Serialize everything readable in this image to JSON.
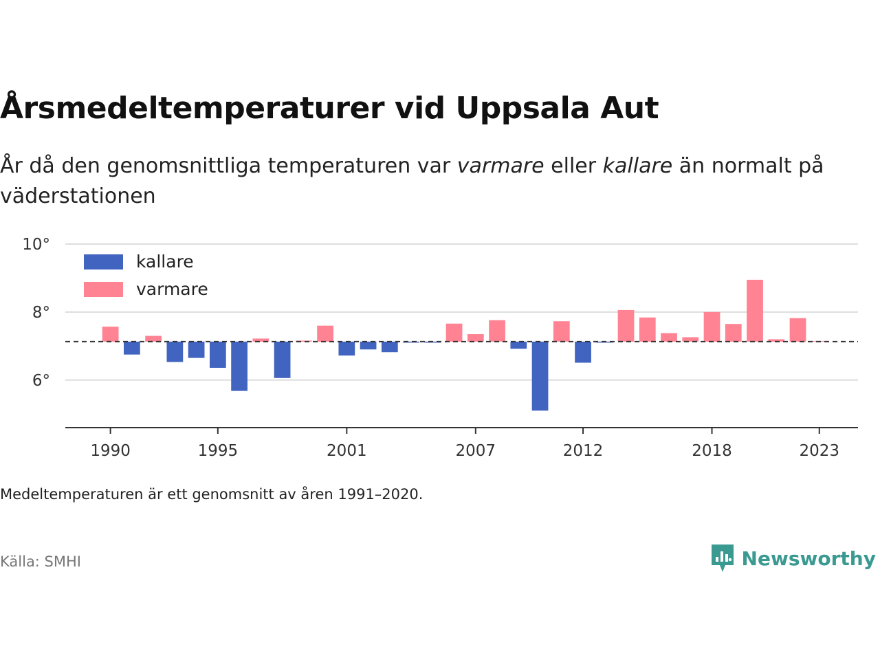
{
  "title": "Årsmedeltemperaturer vid Uppsala Aut",
  "subtitle": {
    "part1": "År då den genomsnittliga temperaturen var ",
    "warm_word": "varmare",
    "part2": " eller ",
    "cold_word": "kallare",
    "part3": " än normalt på väderstationen"
  },
  "note": "Medeltemperaturen är ett genomsnitt av åren 1991–2020.",
  "source": "Källa: SMHI",
  "brand": {
    "name": "Newsworthy",
    "icon": "newsworthy-logo-icon"
  },
  "colors": {
    "cold": "#4164c0",
    "warm": "#ff8392",
    "baseline": "#333333",
    "grid": "#dddddd",
    "brand": "#3a9a92"
  },
  "chart_data": {
    "type": "bar",
    "baseline": 7.13,
    "baseline_style": "dashed",
    "ylim": [
      4.6,
      10
    ],
    "y_ticks": [
      6,
      8,
      10
    ],
    "y_tick_labels": [
      "6°",
      "8°",
      "10°"
    ],
    "x_range": [
      1987.9,
      2024.8
    ],
    "x_ticks": [
      1990,
      1995,
      2001,
      2007,
      2012,
      2018,
      2023
    ],
    "x_tick_labels": [
      "1990",
      "1995",
      "2001",
      "2007",
      "2012",
      "2018",
      "2023"
    ],
    "grid": true,
    "legend": {
      "placement": "top-left",
      "entries": [
        {
          "name": "kallare",
          "color": "#4164c0"
        },
        {
          "name": "varmare",
          "color": "#ff8392"
        }
      ]
    },
    "years": [
      1990,
      1991,
      1992,
      1993,
      1994,
      1995,
      1996,
      1997,
      1998,
      1999,
      2000,
      2001,
      2002,
      2003,
      2004,
      2005,
      2006,
      2007,
      2008,
      2009,
      2010,
      2011,
      2012,
      2013,
      2014,
      2015,
      2016,
      2017,
      2018,
      2019,
      2020,
      2021,
      2022,
      2023
    ],
    "values": [
      7.57,
      6.75,
      7.3,
      6.53,
      6.65,
      6.36,
      5.68,
      7.22,
      6.06,
      7.16,
      7.6,
      6.72,
      6.9,
      6.82,
      7.1,
      7.1,
      7.66,
      7.35,
      7.76,
      6.92,
      5.1,
      7.73,
      6.51,
      7.1,
      8.06,
      7.84,
      7.38,
      7.26,
      8.0,
      7.65,
      8.95,
      7.2,
      7.82,
      7.15
    ]
  }
}
